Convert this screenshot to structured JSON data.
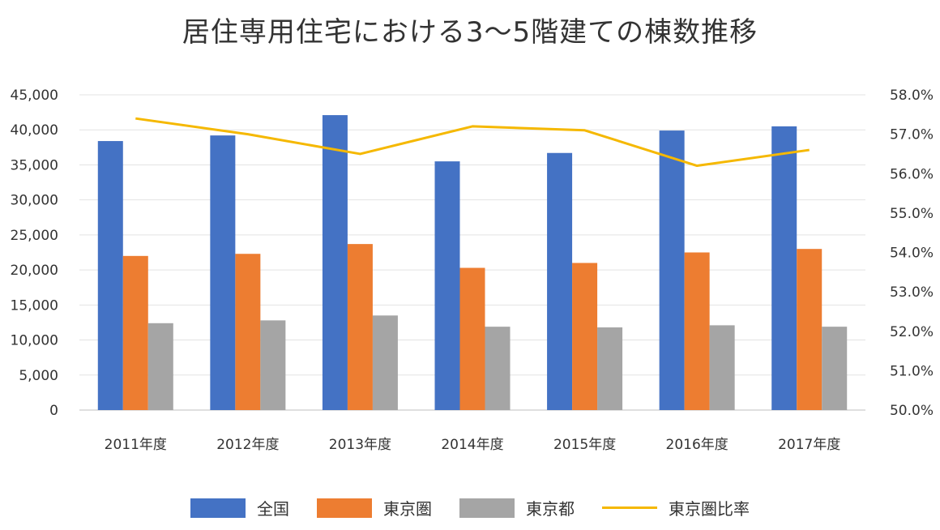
{
  "chart_data": {
    "type": "bar",
    "title": "居住専用住宅における3〜5階建ての棟数推移",
    "categories": [
      "2011年度",
      "2012年度",
      "2013年度",
      "2014年度",
      "2015年度",
      "2016年度",
      "2017年度"
    ],
    "series": [
      {
        "name": "全国",
        "kind": "bar",
        "axis": "left",
        "color": "#4472C4",
        "values": [
          38400,
          39200,
          42100,
          35500,
          36700,
          39900,
          40500
        ]
      },
      {
        "name": "東京圏",
        "kind": "bar",
        "axis": "left",
        "color": "#ED7D31",
        "values": [
          22000,
          22300,
          23700,
          20300,
          21000,
          22500,
          23000
        ]
      },
      {
        "name": "東京都",
        "kind": "bar",
        "axis": "left",
        "color": "#A5A5A5",
        "values": [
          12400,
          12800,
          13500,
          11900,
          11800,
          12100,
          11900
        ]
      },
      {
        "name": "東京圏比率",
        "kind": "line",
        "axis": "right",
        "color": "#F5B800",
        "values": [
          57.4,
          57.0,
          56.5,
          57.2,
          57.1,
          56.2,
          56.6
        ]
      }
    ],
    "ylim_left": [
      0,
      45000
    ],
    "yticks_left": [
      "0",
      "5,000",
      "10,000",
      "15,000",
      "20,000",
      "25,000",
      "30,000",
      "35,000",
      "40,000",
      "45,000"
    ],
    "ylim_right": [
      50.0,
      58.0
    ],
    "yticks_right": [
      "50.0%",
      "51.0%",
      "52.0%",
      "53.0%",
      "54.0%",
      "55.0%",
      "56.0%",
      "57.0%",
      "58.0%"
    ],
    "grid": true,
    "legend_position": "bottom"
  }
}
